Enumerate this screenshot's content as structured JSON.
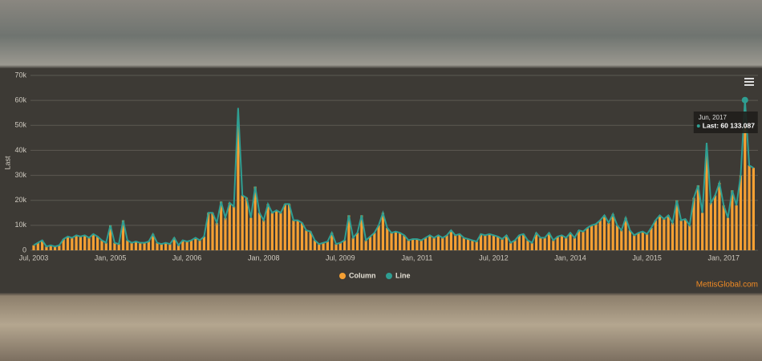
{
  "chart_data": {
    "type": "column-line",
    "y_axis_title": "Last",
    "categories": [
      "Jul, 2003",
      null,
      null,
      null,
      null,
      null,
      null,
      null,
      null,
      null,
      null,
      null,
      null,
      null,
      null,
      null,
      null,
      null,
      "Jan, 2005",
      null,
      null,
      null,
      null,
      null,
      null,
      null,
      null,
      null,
      null,
      null,
      null,
      null,
      null,
      null,
      null,
      null,
      "Jul, 2006",
      null,
      null,
      null,
      null,
      null,
      null,
      null,
      null,
      null,
      null,
      null,
      null,
      null,
      null,
      null,
      null,
      null,
      "Jan, 2008",
      null,
      null,
      null,
      null,
      null,
      null,
      null,
      null,
      null,
      null,
      null,
      null,
      null,
      null,
      null,
      null,
      null,
      "Jul, 2009",
      null,
      null,
      null,
      null,
      null,
      null,
      null,
      null,
      null,
      null,
      null,
      null,
      null,
      null,
      null,
      null,
      null,
      "Jan, 2011",
      null,
      null,
      null,
      null,
      null,
      null,
      null,
      null,
      null,
      null,
      null,
      null,
      null,
      null,
      null,
      null,
      null,
      "Jul, 2012",
      null,
      null,
      null,
      null,
      null,
      null,
      null,
      null,
      null,
      null,
      null,
      null,
      null,
      null,
      null,
      null,
      null,
      "Jan, 2014",
      null,
      null,
      null,
      null,
      null,
      null,
      null,
      null,
      null,
      null,
      null,
      null,
      null,
      null,
      null,
      null,
      null,
      "Jul, 2015",
      null,
      null,
      null,
      null,
      null,
      null,
      null,
      null,
      null,
      null,
      null,
      null,
      null,
      null,
      null,
      null,
      null,
      "Jan, 2017",
      null,
      null,
      null,
      null,
      null,
      null,
      null
    ],
    "series": [
      {
        "name": "Column",
        "color": "#f5a033",
        "values": [
          2000,
          3000,
          4000,
          1500,
          2000,
          1500,
          2000,
          4500,
          5500,
          5000,
          6000,
          5500,
          6000,
          5000,
          6500,
          5500,
          4000,
          3000,
          10000,
          3000,
          2500,
          12000,
          4000,
          3000,
          3500,
          3000,
          3000,
          3500,
          6500,
          3000,
          2500,
          3000,
          2500,
          5000,
          2000,
          4000,
          3500,
          4000,
          5000,
          4000,
          5500,
          15000,
          15000,
          11000,
          19500,
          13000,
          19000,
          17500,
          50000,
          22000,
          21000,
          13000,
          25500,
          15000,
          12000,
          18500,
          15000,
          16000,
          15000,
          18500,
          18500,
          12000,
          12000,
          11000,
          8000,
          7500,
          4000,
          2500,
          3000,
          3500,
          7000,
          2500,
          3000,
          4000,
          14000,
          5000,
          7000,
          14000,
          4000,
          5500,
          7000,
          10000,
          15000,
          9000,
          7000,
          7500,
          7000,
          6000,
          4000,
          4500,
          4500,
          4000,
          5000,
          6000,
          5000,
          6000,
          5000,
          6000,
          8000,
          6000,
          6500,
          5000,
          4500,
          4000,
          3500,
          6500,
          6000,
          6500,
          6000,
          5500,
          4500,
          6000,
          3000,
          4000,
          6000,
          6500,
          4000,
          3000,
          7000,
          5000,
          5000,
          7000,
          4000,
          5500,
          6000,
          5000,
          7000,
          5000,
          8000,
          7500,
          9000,
          10000,
          10500,
          12000,
          14000,
          11000,
          14500,
          10000,
          8000,
          13000,
          8000,
          6000,
          7000,
          7500,
          6500,
          9000,
          12000,
          14000,
          12500,
          14000,
          11000,
          20000,
          12000,
          12500,
          10000,
          21000,
          26000,
          15000,
          38000,
          19000,
          22000,
          27000,
          18000,
          13000,
          24000,
          18000,
          30000,
          50000,
          34000,
          33000
        ]
      },
      {
        "name": "Line",
        "color": "#2f9e92",
        "values": [
          2000,
          3000,
          4000,
          1500,
          2000,
          1500,
          2000,
          4500,
          5500,
          5000,
          6000,
          5500,
          6000,
          5000,
          6500,
          5500,
          4000,
          3000,
          10000,
          3000,
          2500,
          12000,
          4000,
          3000,
          3500,
          3000,
          3000,
          3500,
          6500,
          3000,
          2500,
          3000,
          2500,
          5000,
          2000,
          4000,
          3500,
          4000,
          5000,
          4000,
          5500,
          15000,
          15000,
          11000,
          19500,
          13000,
          19000,
          17500,
          57000,
          22000,
          21000,
          13000,
          25500,
          15000,
          12000,
          18500,
          15000,
          16000,
          15000,
          18500,
          18500,
          12000,
          12000,
          11000,
          8000,
          7500,
          4000,
          2500,
          3000,
          3500,
          7000,
          2500,
          3000,
          4000,
          14000,
          5000,
          7000,
          14000,
          4000,
          5500,
          7000,
          10000,
          15000,
          9000,
          7000,
          7500,
          7000,
          6000,
          4000,
          4500,
          4500,
          4000,
          5000,
          6000,
          5000,
          6000,
          5000,
          6000,
          8000,
          6000,
          6500,
          5000,
          4500,
          4000,
          3500,
          6500,
          6000,
          6500,
          6000,
          5500,
          4500,
          6000,
          3000,
          4000,
          6000,
          6500,
          4000,
          3000,
          7000,
          5000,
          5000,
          7000,
          4000,
          5500,
          6000,
          5000,
          7000,
          5000,
          8000,
          7500,
          9000,
          10000,
          10500,
          12000,
          14000,
          11000,
          14500,
          10000,
          8000,
          13000,
          8000,
          6000,
          7000,
          7500,
          6500,
          9000,
          12000,
          14000,
          12500,
          14000,
          11000,
          20000,
          12000,
          12500,
          10000,
          21000,
          26000,
          15000,
          43000,
          19000,
          22000,
          27000,
          18000,
          13000,
          24000,
          18000,
          30000,
          60133.087,
          34000,
          33000
        ]
      }
    ],
    "ylim": [
      0,
      70000
    ],
    "yticks": [
      {
        "value": 0,
        "label": "0"
      },
      {
        "value": 10000,
        "label": "10k"
      },
      {
        "value": 20000,
        "label": "20k"
      },
      {
        "value": 30000,
        "label": "30k"
      },
      {
        "value": 40000,
        "label": "40k"
      },
      {
        "value": 50000,
        "label": "50k"
      },
      {
        "value": 60000,
        "label": "60k"
      },
      {
        "value": 70000,
        "label": "70k"
      }
    ],
    "grid": true,
    "tooltip": {
      "title": "Jun, 2017",
      "text": "Last: 60 133.087",
      "series": 1,
      "index": 167
    },
    "credit": "MettisGlobal.com"
  }
}
